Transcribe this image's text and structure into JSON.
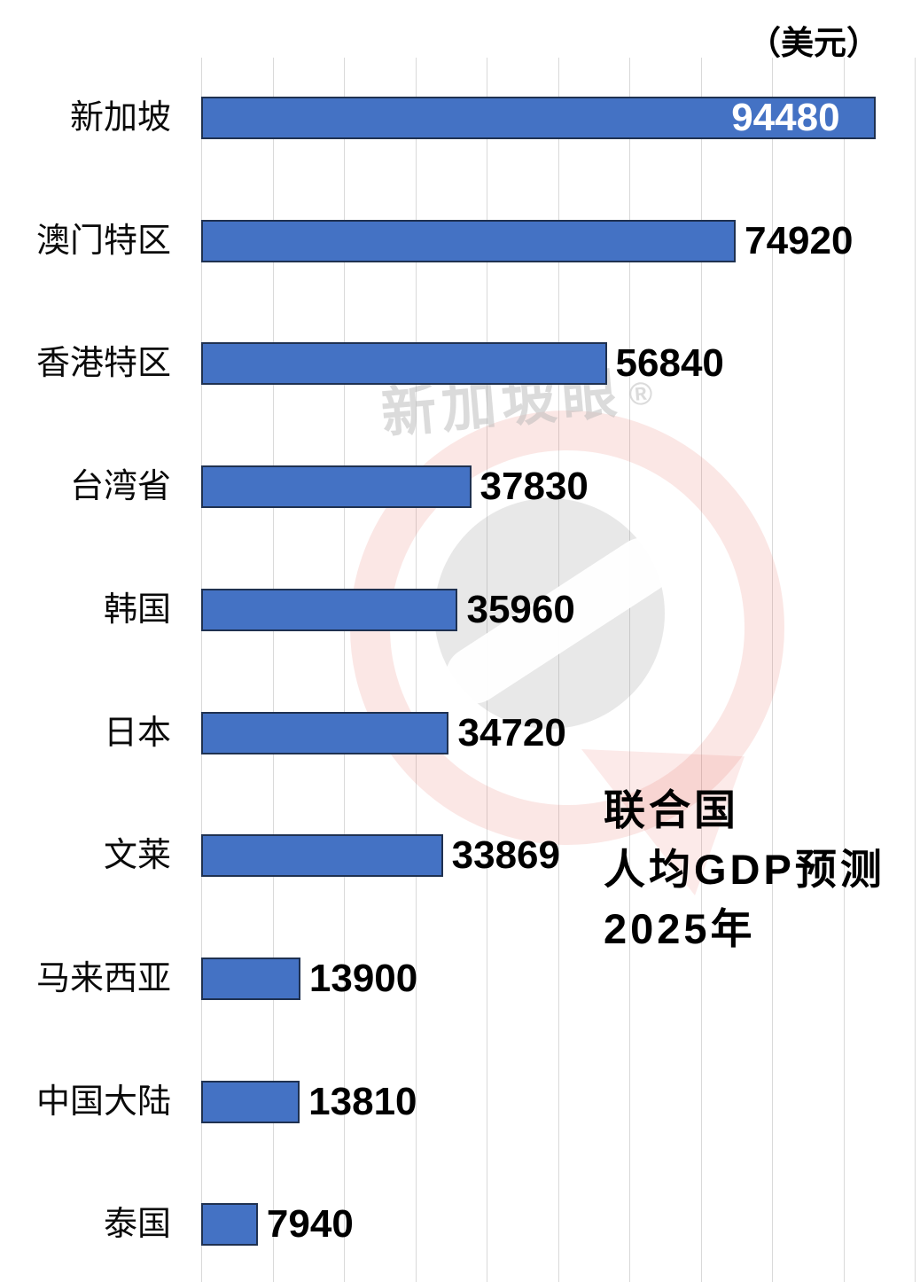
{
  "chart_data": {
    "type": "bar",
    "orientation": "horizontal",
    "title": "联合国人均GDP预测2025年",
    "title_lines": [
      "联合国",
      "人均GDP预测",
      "2025年"
    ],
    "unit_label": "（美元）",
    "categories": [
      "新加坡",
      "澳门特区",
      "香港特区",
      "台湾省",
      "韩国",
      "日本",
      "文莱",
      "马来西亚",
      "中国大陆",
      "泰国"
    ],
    "values": [
      94480,
      74920,
      56840,
      37830,
      35960,
      34720,
      33869,
      13900,
      13810,
      7940
    ],
    "value_label_inside": [
      true,
      false,
      false,
      false,
      false,
      false,
      false,
      false,
      false,
      false
    ],
    "xlabel": "",
    "ylabel": "",
    "xlim": [
      0,
      100000
    ],
    "gridline_step": 10000,
    "grid": true,
    "legend_position": "none",
    "colors": {
      "bar_fill": "#4472C4",
      "bar_border": "#1F3150",
      "value_outside_text": "#000000",
      "value_inside_text": "#FFFFFF",
      "gridline": "#D9D9D9",
      "background": "#FFFFFF",
      "title_text": "#000000"
    }
  },
  "watermark": {
    "text": "新加坡眼",
    "registered_mark": "®"
  }
}
